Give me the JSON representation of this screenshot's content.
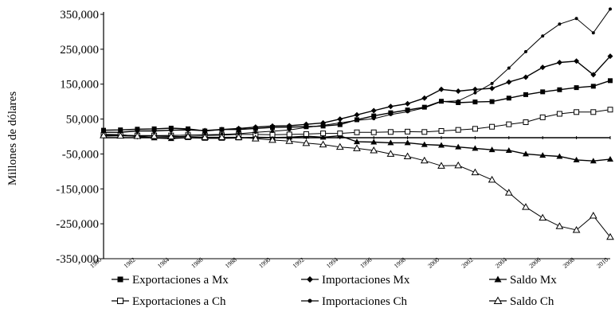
{
  "chart_data": {
    "type": "line",
    "title": "",
    "xlabel": "",
    "ylabel": "Millones de dólares",
    "ylim": [
      -350000,
      350000
    ],
    "yticks": [
      350000,
      250000,
      150000,
      50000,
      -50000,
      -150000,
      -250000,
      -350000
    ],
    "ytick_labels": [
      "350,000",
      "250,000",
      "150,000",
      "50,000",
      "-50,000",
      "-150,000",
      "-250,000",
      "-350,000"
    ],
    "x": [
      1980,
      1981,
      1982,
      1983,
      1984,
      1985,
      1986,
      1987,
      1988,
      1989,
      1990,
      1991,
      1992,
      1993,
      1994,
      1995,
      1996,
      1997,
      1998,
      1999,
      2000,
      2001,
      2002,
      2003,
      2004,
      2005,
      2006,
      2007,
      2008,
      2009,
      2010
    ],
    "xtick_labels": [
      "1980",
      "1982",
      "1984",
      "1986",
      "1988",
      "1990",
      "1992",
      "1994",
      "1996",
      "1998",
      "2000",
      "2002",
      "2004",
      "2006",
      "2008",
      "2010"
    ],
    "grid": false,
    "legend_position": "bottom",
    "series": [
      {
        "name": "Exportaciones a Mx",
        "marker": "square-filled",
        "values": [
          18000,
          19000,
          21000,
          22000,
          24000,
          22000,
          16000,
          20000,
          20000,
          23000,
          26000,
          27000,
          28000,
          30000,
          34000,
          48000,
          59000,
          68000,
          76000,
          84000,
          101000,
          97000,
          99000,
          100000,
          110000,
          120000,
          128000,
          134000,
          140000,
          144000,
          160000
        ]
      },
      {
        "name": "Importaciones Mx",
        "marker": "diamond-filled",
        "values": [
          12000,
          12000,
          16000,
          16000,
          18000,
          19000,
          17000,
          20000,
          23000,
          27000,
          30000,
          31000,
          35000,
          39000,
          50000,
          62000,
          74000,
          86000,
          94000,
          110000,
          135000,
          130000,
          135000,
          138000,
          156000,
          170000,
          198000,
          212000,
          216000,
          177000,
          230000
        ]
      },
      {
        "name": "Saldo Mx",
        "marker": "triangle-filled",
        "values": [
          6000,
          5000,
          0,
          -4000,
          -6000,
          -3000,
          -5000,
          -5000,
          -4000,
          -2000,
          -3000,
          -2000,
          1000,
          -2000,
          2000,
          -15000,
          -16000,
          -18000,
          -18000,
          -23000,
          -25000,
          -30000,
          -34000,
          -38000,
          -40000,
          -50000,
          -54000,
          -57000,
          -67000,
          -70000,
          -65000
        ]
      },
      {
        "name": "Exportaciones a Ch",
        "marker": "square-open",
        "values": [
          4000,
          4000,
          3000,
          3000,
          3000,
          4000,
          3000,
          4000,
          6000,
          6000,
          5000,
          6000,
          7000,
          9000,
          9000,
          12000,
          12000,
          13000,
          14000,
          13000,
          16000,
          19000,
          22000,
          28000,
          35000,
          41000,
          55000,
          65000,
          70000,
          70000,
          77000
        ]
      },
      {
        "name": "Importaciones Ch",
        "marker": "circle-filled",
        "values": [
          1000,
          2000,
          2000,
          2000,
          3000,
          4000,
          5000,
          6000,
          8000,
          12000,
          15000,
          19000,
          26000,
          32000,
          39000,
          46000,
          51000,
          63000,
          71000,
          82000,
          100000,
          102000,
          125000,
          152000,
          196000,
          243000,
          288000,
          322000,
          338000,
          297000,
          365000
        ]
      },
      {
        "name": "Saldo Ch",
        "marker": "triangle-open",
        "values": [
          3000,
          2000,
          1000,
          1000,
          0,
          0,
          -2000,
          -2000,
          -2000,
          -6000,
          -10000,
          -13000,
          -19000,
          -23000,
          -30000,
          -34000,
          -40000,
          -50000,
          -57000,
          -69000,
          -84000,
          -83000,
          -103000,
          -124000,
          -161000,
          -202000,
          -233000,
          -257000,
          -268000,
          -227000,
          -288000
        ]
      }
    ]
  }
}
